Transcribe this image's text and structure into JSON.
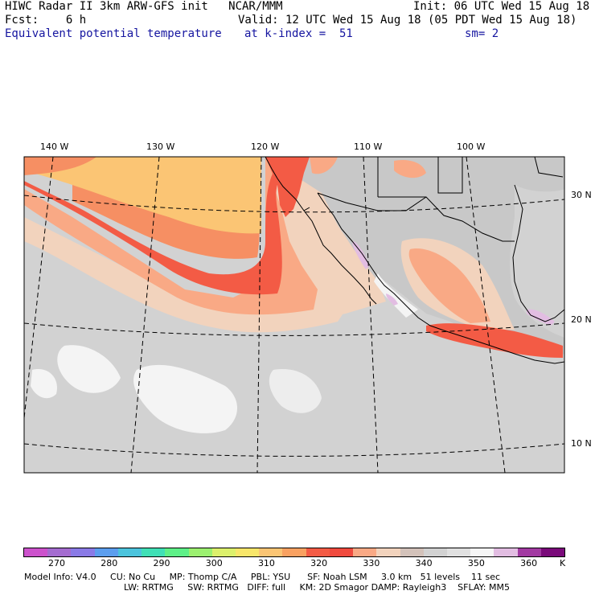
{
  "header": {
    "line1_left": "HIWC Radar II 3km ARW-GFS init   NCAR/MMM",
    "line1_right": "Init: 06 UTC Wed 15 Aug 18",
    "line2_left": "Fcst:    6 h",
    "line2_right": "Valid: 12 UTC Wed 15 Aug 18 (05 PDT Wed 15 Aug 18)",
    "line3_field": "Equivalent potential temperature",
    "line3_level": "at k-index =  51",
    "line3_smooth": "sm= 2"
  },
  "map": {
    "lon_labels": [
      "140 W",
      "130 W",
      "120 W",
      "110 W",
      "100 W"
    ],
    "lat_labels": [
      "30 N",
      "20 N",
      "10 N"
    ],
    "field_colors": {
      "land_gray": "#c8c8c8",
      "ocean_gray": "#d2d2d2",
      "white": "#f4f4f4",
      "tan": "#f2d3bd",
      "salmon": "#f9a985",
      "orange": "#f68f63",
      "red": "#f35b45",
      "light_orange": "#fbc574",
      "lavender": "#e2bde2"
    }
  },
  "colorbar": {
    "colors": [
      "#cc52cc",
      "#a46cd0",
      "#8a7ae6",
      "#5c9eee",
      "#4cc4dd",
      "#40e0b6",
      "#5ef088",
      "#9cf070",
      "#dcf06c",
      "#f8e66a",
      "#fbc574",
      "#f9a161",
      "#f35b45",
      "#f04a3e",
      "#f9a985",
      "#f2d3bd",
      "#d3c2ba",
      "#d2d2d2",
      "#e0e0e0",
      "#f6f6f6",
      "#e2bde2",
      "#a23aa2",
      "#7a0a7a"
    ],
    "labels": [
      "270",
      "280",
      "290",
      "300",
      "310",
      "320",
      "330",
      "340",
      "350",
      "360"
    ],
    "unit": "K"
  },
  "footer": {
    "line1": "Model Info: V4.0     CU: No Cu     MP: Thomp C/A     PBL: YSU      SF: Noah LSM     3.0 km   51 levels    11 sec",
    "line2": "LW: RRTMG     SW: RRTMG   DIFF: full     KM: 2D Smagor DAMP: Rayleigh3    SFLAY: MM5"
  }
}
